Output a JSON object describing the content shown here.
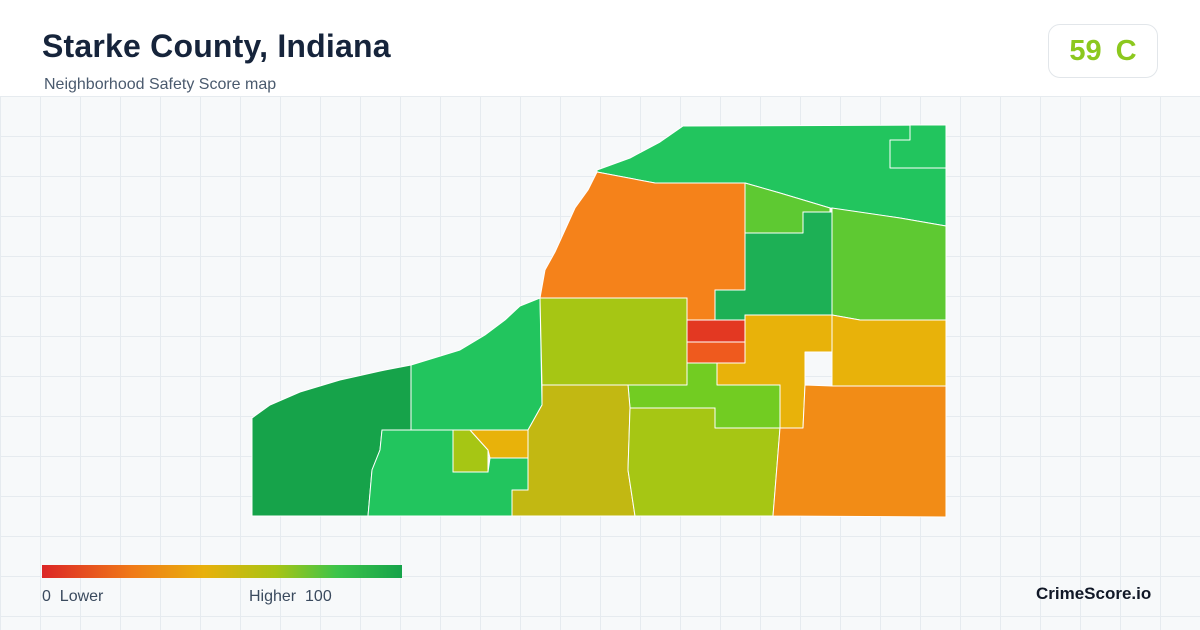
{
  "header": {
    "title": "Starke County, Indiana",
    "subtitle": "Neighborhood Safety Score map"
  },
  "score": {
    "value": "59",
    "grade": "C",
    "color": "#8cc81e"
  },
  "legend": {
    "min_value": "0",
    "min_label": "Lower",
    "max_label": "Higher",
    "max_value": "100",
    "colors": [
      "#dc2626",
      "#f07a18",
      "#e8b00c",
      "#a8c414",
      "#3cc44a",
      "#16a34a"
    ]
  },
  "brand": "CrimeScore.io",
  "map": {
    "region": "Starke County",
    "colors": {
      "dark_green": "#16a34a",
      "green": "#22c55e",
      "light_green": "#5ec932",
      "yellow_green": "#a6c614",
      "olive": "#c2b812",
      "amber": "#e8b20a",
      "orange": "#f5821a",
      "red_orange": "#ef5a1e",
      "red": "#e33822"
    }
  }
}
